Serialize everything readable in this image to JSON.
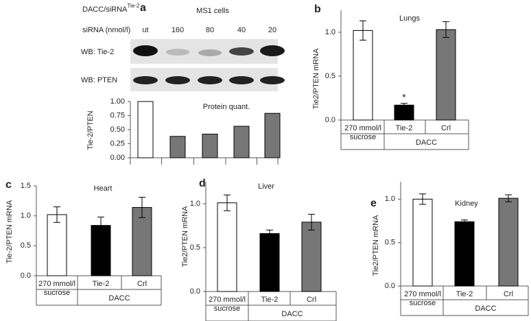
{
  "chart_data": [
    {
      "type": "bar",
      "panel": "a",
      "title": "Protein quant.",
      "ylabel": "Tie-2/PTEN",
      "blot": {
        "header": "DACC/siRNA",
        "header_sup": "Tie-2",
        "cells": "MS1 cells",
        "dose_label": "siRNA (nmol/l)",
        "rows": [
          "WB: Tie-2",
          "WB: PTEN"
        ]
      },
      "categories": [
        "ut",
        "160",
        "80",
        "40",
        "20"
      ],
      "values": [
        1.0,
        0.38,
        0.42,
        0.56,
        0.79
      ],
      "colors": [
        "#ffffff",
        "#777777",
        "#777777",
        "#777777",
        "#777777"
      ],
      "ylim": [
        0,
        1
      ],
      "yticks": [
        {
          "value": 0,
          "label": "0.00"
        },
        0.25,
        {
          "value": 0.5,
          "label": "0.50"
        },
        0.75,
        {
          "value": 1,
          "label": "1.00"
        }
      ]
    },
    {
      "type": "bar",
      "panel": "b",
      "title": "Lungs",
      "ylabel": "Tie2/PTEN mRNA",
      "categories": [
        [
          "270 mmol/l",
          "sucrose"
        ],
        [
          "Tie-2"
        ],
        [
          "Crl"
        ]
      ],
      "group_label": "DACC",
      "values": [
        1.02,
        0.17,
        1.03
      ],
      "errors": [
        0.11,
        0.02,
        0.09
      ],
      "colors": [
        "#ffffff",
        "#000000",
        "#777777"
      ],
      "annotations": [
        {
          "text": "*",
          "category": "Tie-2"
        }
      ],
      "ylim": [
        0,
        1.25
      ],
      "yticks": [
        {
          "value": 0,
          "label": "0.0"
        },
        0.5,
        {
          "value": 1,
          "label": "1.0"
        }
      ]
    },
    {
      "type": "bar",
      "panel": "c",
      "title": "Heart",
      "ylabel": "Tie-2/PTEN mRNA",
      "categories": [
        [
          "270 mmol/l",
          "sucrose"
        ],
        [
          "Tie-2"
        ],
        [
          "Crl"
        ]
      ],
      "group_label": "DACC",
      "values": [
        1.02,
        0.84,
        1.14
      ],
      "errors": [
        0.13,
        0.14,
        0.17
      ],
      "colors": [
        "#ffffff",
        "#000000",
        "#777777"
      ],
      "ylim": [
        0,
        1.5
      ],
      "yticks": [
        {
          "value": 0,
          "label": "0.0"
        },
        0.5,
        {
          "value": 1,
          "label": "1.0"
        },
        1.5
      ]
    },
    {
      "type": "bar",
      "panel": "d",
      "title": "Liver",
      "ylabel": "Tie2/PTEN mRNA",
      "categories": [
        [
          "270 mmol/l",
          "sucrose"
        ],
        [
          "Tie-2"
        ],
        [
          "Crl"
        ]
      ],
      "group_label": "DACC",
      "values": [
        1.01,
        0.66,
        0.79
      ],
      "errors": [
        0.09,
        0.04,
        0.09
      ],
      "colors": [
        "#ffffff",
        "#000000",
        "#777777"
      ],
      "ylim": [
        0,
        1.25
      ],
      "yticks": [
        {
          "value": 0,
          "label": "0.0"
        },
        0.5,
        {
          "value": 1,
          "label": "1.0"
        }
      ]
    },
    {
      "type": "bar",
      "panel": "e",
      "title": "Kidney",
      "ylabel": "Tie2/PTEN mRNA",
      "categories": [
        [
          "270 mmol/l",
          "sucrose"
        ],
        [
          "Tie-2"
        ],
        [
          "Crl"
        ]
      ],
      "group_label": "DACC",
      "values": [
        1.0,
        0.74,
        1.01
      ],
      "errors": [
        0.06,
        0.02,
        0.04
      ],
      "colors": [
        "#ffffff",
        "#000000",
        "#777777"
      ],
      "ylim": [
        0,
        1.2
      ],
      "yticks": [
        {
          "value": 0,
          "label": "0.0"
        },
        0.5,
        {
          "value": 1,
          "label": "1.0"
        }
      ]
    }
  ]
}
